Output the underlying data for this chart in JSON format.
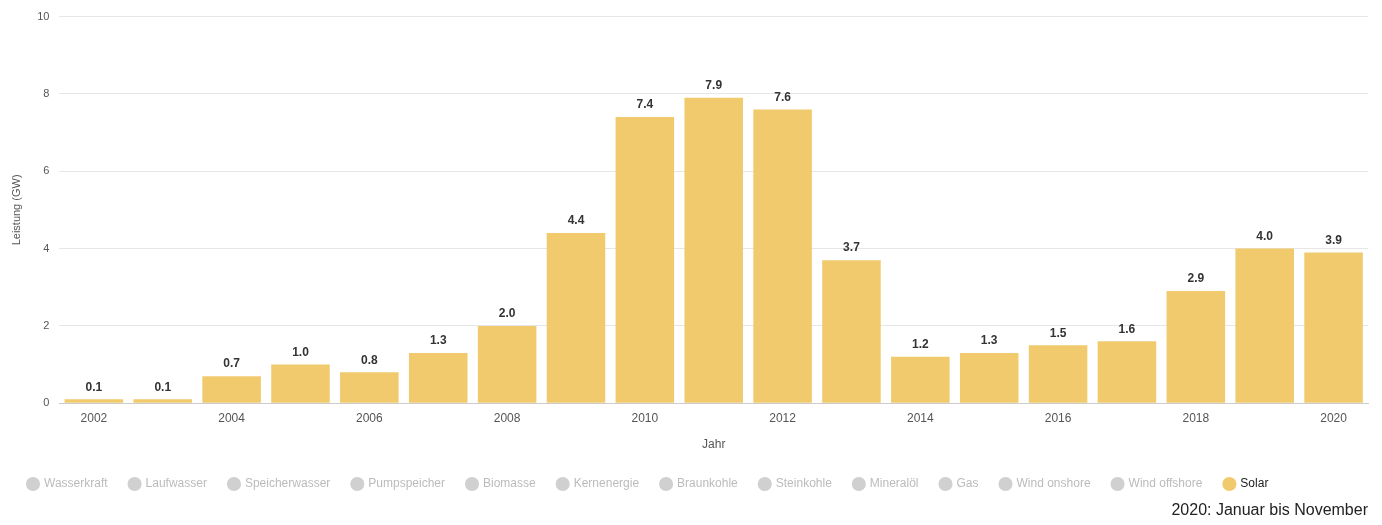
{
  "chart_data": {
    "type": "bar",
    "xlabel": "Jahr",
    "ylabel": "Leistung (GW)",
    "categories": [
      "2002",
      null,
      "2004",
      null,
      "2006",
      null,
      "2008",
      null,
      "2010",
      null,
      "2012",
      null,
      "2014",
      null,
      "2016",
      null,
      "2018",
      null,
      "2020"
    ],
    "series": [
      {
        "name": "Wasserkraft",
        "color": "#d0d0d0",
        "values": [
          null,
          null,
          null,
          null,
          null,
          null,
          null,
          null,
          null,
          null,
          null,
          null,
          null,
          null,
          null,
          null,
          null,
          null,
          null
        ]
      },
      {
        "name": "Laufwasser",
        "color": "#d0d0d0",
        "values": [
          null,
          null,
          null,
          null,
          null,
          null,
          null,
          null,
          null,
          null,
          null,
          null,
          null,
          null,
          null,
          null,
          null,
          null,
          null
        ]
      },
      {
        "name": "Speicherwasser",
        "color": "#d0d0d0",
        "values": [
          null,
          null,
          null,
          null,
          null,
          null,
          null,
          null,
          null,
          null,
          null,
          null,
          null,
          null,
          null,
          null,
          null,
          null,
          null
        ]
      },
      {
        "name": "Pumpspeicher",
        "color": "#d0d0d0",
        "values": [
          null,
          null,
          null,
          null,
          null,
          null,
          null,
          null,
          null,
          null,
          null,
          null,
          null,
          null,
          null,
          null,
          null,
          null,
          null
        ]
      },
      {
        "name": "Biomasse",
        "color": "#d0d0d0",
        "values": [
          null,
          null,
          null,
          null,
          null,
          null,
          null,
          null,
          null,
          null,
          null,
          null,
          null,
          null,
          null,
          null,
          null,
          null,
          null
        ]
      },
      {
        "name": "Kernenergie",
        "color": "#d0d0d0",
        "values": [
          null,
          null,
          null,
          null,
          null,
          null,
          null,
          null,
          null,
          null,
          null,
          null,
          null,
          null,
          null,
          null,
          null,
          null,
          null
        ]
      },
      {
        "name": "Braunkohle",
        "color": "#d0d0d0",
        "values": [
          null,
          null,
          null,
          null,
          null,
          null,
          null,
          null,
          null,
          null,
          null,
          null,
          null,
          null,
          null,
          null,
          null,
          null,
          null
        ]
      },
      {
        "name": "Steinkohle",
        "color": "#d0d0d0",
        "values": [
          null,
          null,
          null,
          null,
          null,
          null,
          null,
          null,
          null,
          null,
          null,
          null,
          null,
          null,
          null,
          null,
          null,
          null,
          null
        ]
      },
      {
        "name": "Mineralöl",
        "color": "#d0d0d0",
        "values": [
          null,
          null,
          null,
          null,
          null,
          null,
          null,
          null,
          null,
          null,
          null,
          null,
          null,
          null,
          null,
          null,
          null,
          null,
          null
        ]
      },
      {
        "name": "Gas",
        "color": "#d0d0d0",
        "values": [
          null,
          null,
          null,
          null,
          null,
          null,
          null,
          null,
          null,
          null,
          null,
          null,
          null,
          null,
          null,
          null,
          null,
          null,
          null
        ]
      },
      {
        "name": "Wind onshore",
        "color": "#d0d0d0",
        "values": [
          null,
          null,
          null,
          null,
          null,
          null,
          null,
          null,
          null,
          null,
          null,
          null,
          null,
          null,
          null,
          null,
          null,
          null,
          null
        ]
      },
      {
        "name": "Wind offshore",
        "color": "#d0d0d0",
        "values": [
          null,
          null,
          null,
          null,
          null,
          null,
          null,
          null,
          null,
          null,
          null,
          null,
          null,
          null,
          null,
          null,
          null,
          null,
          null
        ]
      },
      {
        "name": "Solar",
        "color": "#f0ca6c",
        "values": [
          0.1,
          0.1,
          0.7,
          1.0,
          0.8,
          1.3,
          2.0,
          4.4,
          7.4,
          7.9,
          7.6,
          3.7,
          1.2,
          1.3,
          1.5,
          1.6,
          2.9,
          4.0,
          3.9
        ],
        "value_labels": [
          "0.1",
          "0.1",
          "0.7",
          "1.0",
          "0.8",
          "1.3",
          "2.0",
          "4.4",
          "7.4",
          "7.9",
          "7.6",
          "3.7",
          "1.2",
          "1.3",
          "1.5",
          "1.6",
          "2.9",
          "4.0",
          "3.9"
        ]
      }
    ],
    "ylim": [
      0,
      10
    ],
    "yticks": [
      0,
      2,
      4,
      6,
      8,
      10
    ],
    "grid": "y",
    "legend": "bottom",
    "stacked": true,
    "annotations": [
      "2020: Januar bis November"
    ]
  }
}
